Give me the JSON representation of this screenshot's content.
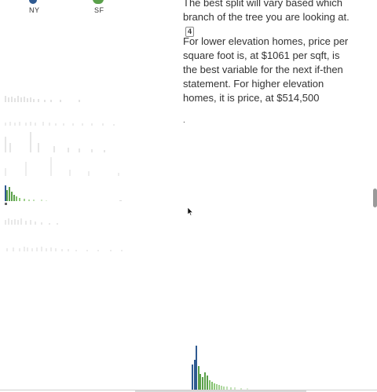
{
  "legend": {
    "cities": [
      {
        "label": "NY",
        "color": "#2f5a91"
      },
      {
        "label": "SF",
        "color": "#5aa04a"
      }
    ]
  },
  "narrative": {
    "p1": "The best split will vary based which branch of the tree you are looking at.",
    "note_number": "4",
    "p2": "For lower elevation homes, price per square foot is, at $1061 per sqft, is the best variable for the next if-then statement. For higher elevation homes, it is price, at $514,500",
    "trailing": "."
  },
  "colors": {
    "ny": "#2f5a91",
    "sf": "#5aa04a",
    "faded": "#e6e6e6"
  }
}
